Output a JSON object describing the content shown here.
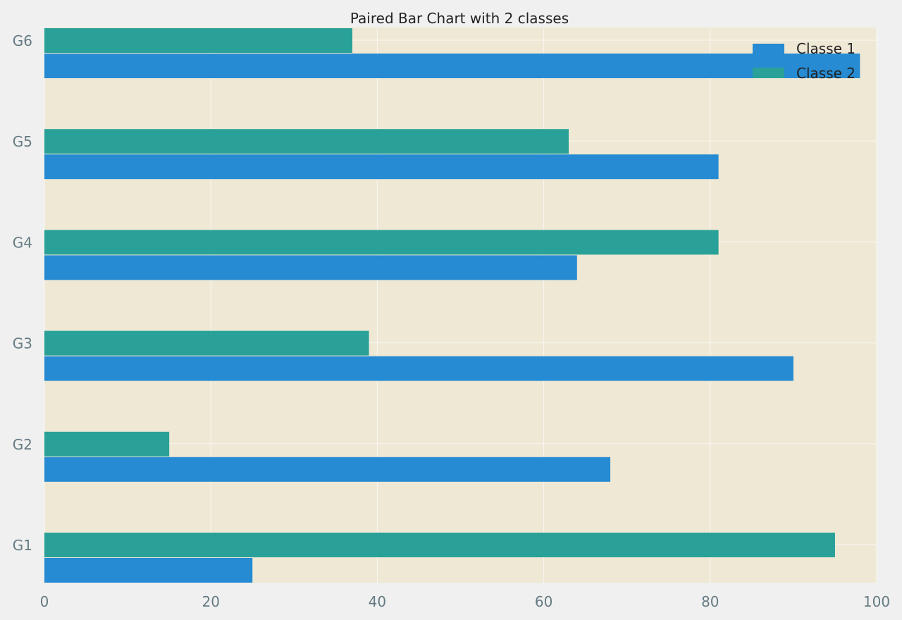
{
  "colors": {
    "figure_bg": "#f0f0f0",
    "plot_bg": "#eee8d5",
    "grid": "#f7f5ee",
    "classe1": "#268bd2",
    "classe2": "#2aa198"
  },
  "chart_data": {
    "type": "bar",
    "orientation": "horizontal",
    "title": "Paired Bar Chart with 2 classes",
    "xlabel": "",
    "ylabel": "",
    "categories": [
      "G1",
      "G2",
      "G3",
      "G4",
      "G5",
      "G6"
    ],
    "series": [
      {
        "name": "Classe 1",
        "values": [
          25,
          68,
          90,
          64,
          81,
          98
        ]
      },
      {
        "name": "Classe 2",
        "values": [
          95,
          15,
          39,
          81,
          63,
          37
        ]
      }
    ],
    "xlim": [
      0,
      100
    ],
    "xticks": [
      0,
      20,
      40,
      60,
      80,
      100
    ],
    "grid": true,
    "legend_position": "top-right"
  }
}
